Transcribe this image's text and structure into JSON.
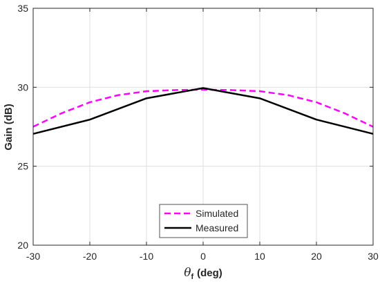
{
  "chart_data": {
    "type": "line",
    "xlabel": "(deg)",
    "xlabel_symbol": "θ",
    "xlabel_subscript": "f",
    "ylabel": "Gain (dB)",
    "xlim": [
      -30,
      30
    ],
    "ylim": [
      20,
      35
    ],
    "xticks": [
      -30,
      -20,
      -10,
      0,
      10,
      20,
      30
    ],
    "yticks": [
      20,
      25,
      30,
      35
    ],
    "grid": true,
    "legend_position": "bottom-center",
    "series": [
      {
        "name": "Simulated",
        "color": "#ff00ff",
        "style": "dashed",
        "x": [
          -30,
          -25,
          -20,
          -15,
          -10,
          -5,
          0,
          5,
          10,
          15,
          20,
          25,
          30
        ],
        "y": [
          27.5,
          28.35,
          29.05,
          29.5,
          29.75,
          29.82,
          29.85,
          29.82,
          29.75,
          29.5,
          29.05,
          28.35,
          27.5
        ]
      },
      {
        "name": "Measured",
        "color": "#000000",
        "style": "solid",
        "x": [
          -30,
          -20,
          -10,
          0,
          10,
          20,
          30
        ],
        "y": [
          27.05,
          27.95,
          29.3,
          29.95,
          29.3,
          27.95,
          27.05
        ]
      }
    ]
  }
}
